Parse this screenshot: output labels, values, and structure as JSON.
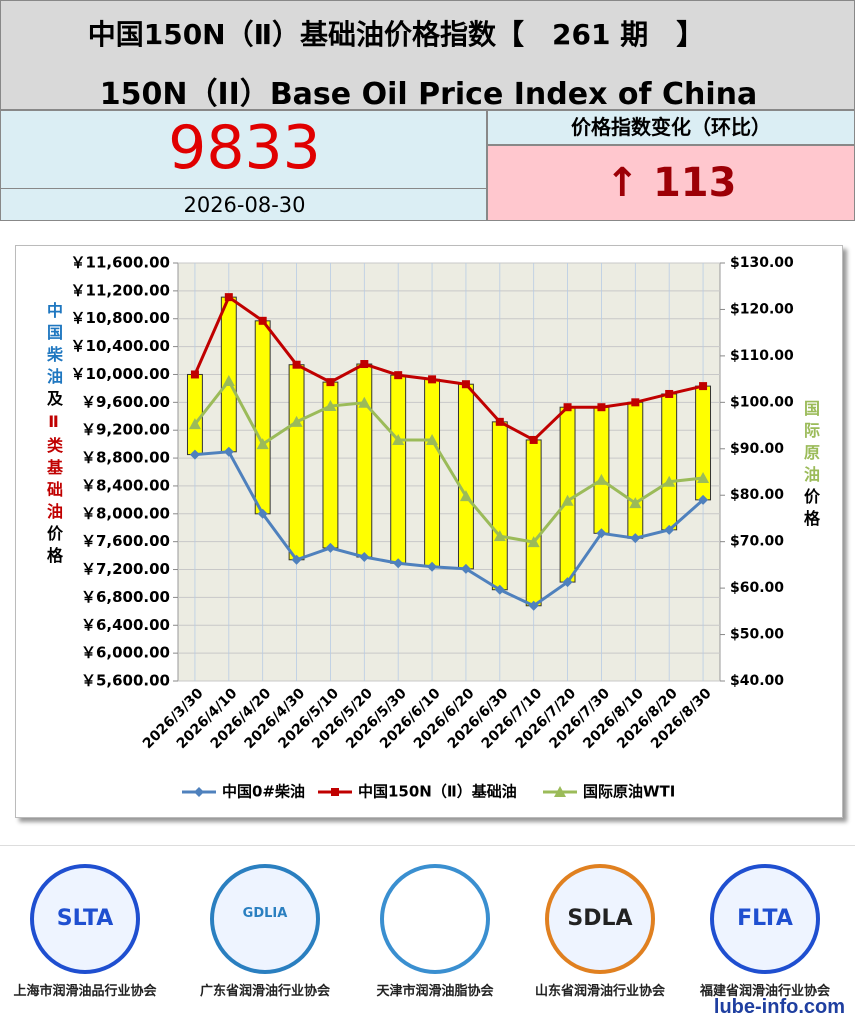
{
  "header": {
    "title_cn": "中国150N（Ⅱ）基础油价格指数【　261 期　】",
    "title_en": "150N（II）Base Oil Price Index of China"
  },
  "index": {
    "value": 9833,
    "date": "2026-08-30",
    "change_label": "价格指数变化（环比）",
    "change": "↑ 113"
  },
  "chart_data": {
    "type": "line",
    "categories": [
      "2026/3/30",
      "2026/4/10",
      "2026/4/20",
      "2026/4/30",
      "2026/5/10",
      "2026/5/20",
      "2026/5/30",
      "2026/6/10",
      "2026/6/20",
      "2026/6/30",
      "2026/7/10",
      "2026/7/20",
      "2026/7/30",
      "2026/8/10",
      "2026/8/20",
      "2026/8/30"
    ],
    "series": [
      {
        "name": "中国0#柴油",
        "color": "#4f81bd",
        "marker": "diamond",
        "values": [
          8850,
          8890,
          8000,
          7340,
          7510,
          7380,
          7290,
          7240,
          7210,
          6910,
          6680,
          7020,
          7720,
          7650,
          7770,
          8200
        ]
      },
      {
        "name": "中国150N（Ⅱ）基础油",
        "color": "#c00000",
        "marker": "square",
        "values": [
          10000,
          11110,
          10770,
          10140,
          9890,
          10150,
          9990,
          9930,
          9860,
          9320,
          9060,
          9530,
          9530,
          9600,
          9720,
          9833
        ]
      },
      {
        "name": "国际原油WTI",
        "color": "#9bbb59",
        "marker": "triangle",
        "axis": "y2",
        "values": [
          95.3,
          104.6,
          91.0,
          95.8,
          99.2,
          99.9,
          91.9,
          91.9,
          79.8,
          71.2,
          69.9,
          78.8,
          83.3,
          78.3,
          82.9,
          83.7
        ]
      }
    ],
    "updown_bars": {
      "color": "#ffff00"
    },
    "ylim": [
      5600,
      11600
    ],
    "yticks": [
      {
        "value": 5600,
        "label": "￥5,600.00"
      },
      {
        "value": 6000,
        "label": "￥6,000.00"
      },
      {
        "value": 6400,
        "label": "￥6,400.00"
      },
      {
        "value": 6800,
        "label": "￥6,800.00"
      },
      {
        "value": 7200,
        "label": "￥7,200.00"
      },
      {
        "value": 7600,
        "label": "￥7,600.00"
      },
      {
        "value": 8000,
        "label": "￥8,000.00"
      },
      {
        "value": 8400,
        "label": "￥8,400.00"
      },
      {
        "value": 8800,
        "label": "￥8,800.00"
      },
      {
        "value": 9200,
        "label": "￥9,200.00"
      },
      {
        "value": 9600,
        "label": "￥9,600.00"
      },
      {
        "value": 10000,
        "label": "￥10,000.00"
      },
      {
        "value": 10400,
        "label": "￥10,400.00"
      },
      {
        "value": 10800,
        "label": "￥10,800.00"
      },
      {
        "value": 11200,
        "label": "￥11,200.00"
      },
      {
        "value": 11600,
        "label": "￥11,600.00"
      }
    ],
    "y2lim": [
      40,
      130
    ],
    "y2ticks": [
      {
        "value": 40,
        "label": "$40.00"
      },
      {
        "value": 50,
        "label": "$50.00"
      },
      {
        "value": 60,
        "label": "$60.00"
      },
      {
        "value": 70,
        "label": "$70.00"
      },
      {
        "value": 80,
        "label": "$80.00"
      },
      {
        "value": 90,
        "label": "$90.00"
      },
      {
        "value": 100,
        "label": "$100.00"
      },
      {
        "value": 110,
        "label": "$110.00"
      },
      {
        "value": 120,
        "label": "$120.00"
      },
      {
        "value": 130,
        "label": "$130.00"
      }
    ],
    "ylabel": [
      {
        "text": "中国柴油",
        "color": "#1f77c0"
      },
      {
        "text": "及",
        "color": "#000000"
      },
      {
        "text": "Ⅱ类基础油",
        "color": "#c00000"
      },
      {
        "text": "价格",
        "color": "#000000"
      }
    ],
    "y2label": [
      {
        "text": "国际原油",
        "color": "#9bbb59"
      },
      {
        "text": "价格",
        "color": "#000000"
      }
    ],
    "grid": true
  },
  "footer": {
    "logos": [
      {
        "abbr": "SLTA",
        "name": "上海市润滑油品行业协会"
      },
      {
        "abbr": "GDLIA",
        "name": "广东省润滑油行业协会"
      },
      {
        "name": "天津市润滑油脂协会"
      },
      {
        "abbr": "SDLA",
        "name": "山东省润滑油行业协会"
      },
      {
        "abbr": "FLTA",
        "name": "福建省润滑油行业协会"
      }
    ],
    "website": "lube-info.com"
  }
}
